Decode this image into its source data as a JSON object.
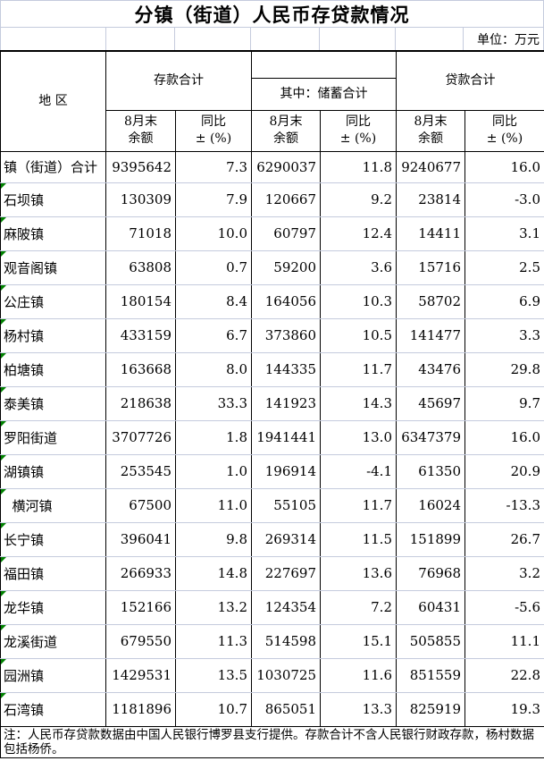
{
  "title": "分镇（街道）人民币存贷款情况",
  "unit_label": "单位：万元",
  "colors": {
    "grid_light": "#c5cbdd",
    "border_dark": "#000000",
    "marker_green": "#008000",
    "text_color": "#000000"
  },
  "table": {
    "region_header": "地    区",
    "groups": {
      "deposit_total": "存款合计",
      "savings_subtotal": "其中：储蓄合计",
      "loan_total": "贷款合计"
    },
    "subheaders": {
      "balance": "8月末\n余额",
      "yoy": "同比\n± (%)"
    },
    "rows": [
      {
        "region": "镇（街道）合计",
        "marker": false,
        "values": [
          "9395642",
          "7.3",
          "6290037",
          "11.8",
          "9240677",
          "16.0"
        ]
      },
      {
        "region": "石坝镇",
        "marker": true,
        "values": [
          "130309",
          "7.9",
          "120667",
          "9.2",
          "23814",
          "-3.0"
        ]
      },
      {
        "region": "麻陂镇",
        "marker": true,
        "values": [
          "71018",
          "10.0",
          "60797",
          "12.4",
          "14411",
          "3.1"
        ]
      },
      {
        "region": "观音阁镇",
        "marker": true,
        "values": [
          "63808",
          "0.7",
          "59200",
          "3.6",
          "15716",
          "2.5"
        ]
      },
      {
        "region": "公庄镇",
        "marker": true,
        "values": [
          "180154",
          "8.4",
          "164056",
          "10.3",
          "58702",
          "6.9"
        ]
      },
      {
        "region": "杨村镇",
        "marker": true,
        "values": [
          "433159",
          "6.7",
          "373860",
          "10.5",
          "141477",
          "3.3"
        ]
      },
      {
        "region": "柏塘镇",
        "marker": true,
        "values": [
          "163668",
          "8.0",
          "144335",
          "11.7",
          "43476",
          "29.8"
        ]
      },
      {
        "region": "泰美镇",
        "marker": true,
        "values": [
          "218638",
          "33.3",
          "141923",
          "14.3",
          "45697",
          "9.7"
        ]
      },
      {
        "region": "罗阳街道",
        "marker": true,
        "values": [
          "3707726",
          "1.8",
          "1941441",
          "13.0",
          "6347379",
          "16.0"
        ]
      },
      {
        "region": "湖镇镇",
        "marker": true,
        "values": [
          "253545",
          "1.0",
          "196914",
          "-4.1",
          "61350",
          "20.9"
        ]
      },
      {
        "region": "  横河镇",
        "marker": true,
        "values": [
          "67500",
          "11.0",
          "55105",
          "11.7",
          "16024",
          "-13.3"
        ]
      },
      {
        "region": "长宁镇",
        "marker": true,
        "values": [
          "396041",
          "9.8",
          "269314",
          "11.5",
          "151899",
          "26.7"
        ]
      },
      {
        "region": "福田镇",
        "marker": true,
        "values": [
          "266933",
          "14.8",
          "227697",
          "13.6",
          "76968",
          "3.2"
        ]
      },
      {
        "region": "龙华镇",
        "marker": true,
        "values": [
          "152166",
          "13.2",
          "124354",
          "7.2",
          "60431",
          "-5.6"
        ]
      },
      {
        "region": "龙溪街道",
        "marker": true,
        "values": [
          "679550",
          "11.3",
          "514598",
          "15.1",
          "505855",
          "11.1"
        ]
      },
      {
        "region": "园洲镇",
        "marker": true,
        "values": [
          "1429531",
          "13.5",
          "1030725",
          "11.6",
          "851559",
          "22.8"
        ]
      },
      {
        "region": "石湾镇",
        "marker": true,
        "values": [
          "1181896",
          "10.7",
          "865051",
          "13.3",
          "825919",
          "19.3"
        ]
      }
    ]
  },
  "note": "注：人民币存贷款数据由中国人民银行博罗县支行提供。存款合计不含人民银行财政存款，杨村数据包括杨侨。"
}
